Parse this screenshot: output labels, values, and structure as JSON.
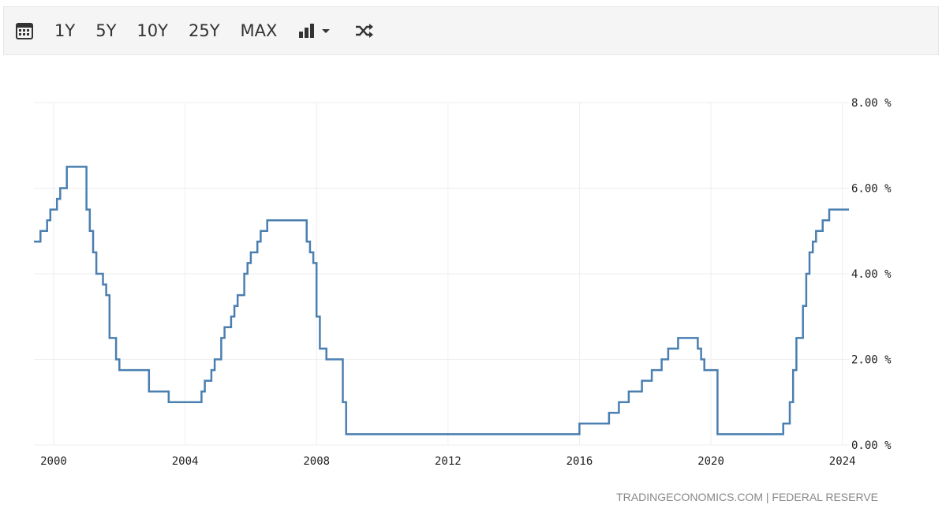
{
  "toolbar": {
    "calendar_icon": "calendar-icon",
    "ranges": [
      "1Y",
      "5Y",
      "10Y",
      "25Y",
      "MAX"
    ],
    "chart_type_icon": "bar-chart-dropdown-icon",
    "shuffle_icon": "shuffle-icon"
  },
  "colors": {
    "line": "#4a7fb0",
    "grid": "#eeeeee",
    "axis_text": "#222222",
    "credit": "#888888"
  },
  "credit": "TRADINGECONOMICS.COM | FEDERAL RESERVE",
  "chart_data": {
    "type": "line",
    "title": "",
    "xlabel": "",
    "ylabel": "",
    "x_unit": "year",
    "xlim": [
      1999.4,
      2024.2
    ],
    "ylim": [
      0,
      8
    ],
    "x_ticks": [
      2000,
      2004,
      2008,
      2012,
      2016,
      2020,
      2024
    ],
    "y_ticks": [
      0,
      2,
      4,
      6,
      8
    ],
    "y_tick_labels": [
      "0.00 %",
      "2.00 %",
      "4.00 %",
      "6.00 %",
      "8.00 %"
    ],
    "y_axis_position": "right",
    "grid": true,
    "step": true,
    "series": [
      {
        "name": "",
        "x": [
          1999.4,
          1999.6,
          1999.8,
          1999.9,
          2000.1,
          2000.2,
          2000.4,
          2000.5,
          2001.0,
          2001.1,
          2001.2,
          2001.3,
          2001.5,
          2001.6,
          2001.7,
          2001.8,
          2001.9,
          2002.0,
          2002.9,
          2003.5,
          2004.5,
          2004.6,
          2004.8,
          2004.9,
          2005.1,
          2005.2,
          2005.4,
          2005.5,
          2005.6,
          2005.8,
          2005.9,
          2006.0,
          2006.2,
          2006.3,
          2006.5,
          2007.7,
          2007.8,
          2007.9,
          2008.0,
          2008.1,
          2008.3,
          2008.8,
          2008.9,
          2016.0,
          2016.9,
          2017.2,
          2017.5,
          2017.9,
          2018.2,
          2018.5,
          2018.7,
          2019.0,
          2019.6,
          2019.7,
          2019.8,
          2020.2,
          2022.2,
          2022.4,
          2022.5,
          2022.6,
          2022.8,
          2022.9,
          2023.0,
          2023.1,
          2023.2,
          2023.4,
          2023.6,
          2024.2
        ],
        "values": [
          4.75,
          5.0,
          5.25,
          5.5,
          5.75,
          6.0,
          6.5,
          6.5,
          5.5,
          5.0,
          4.5,
          4.0,
          3.75,
          3.5,
          2.5,
          2.5,
          2.0,
          1.75,
          1.25,
          1.0,
          1.25,
          1.5,
          1.75,
          2.0,
          2.5,
          2.75,
          3.0,
          3.25,
          3.5,
          4.0,
          4.25,
          4.5,
          4.75,
          5.0,
          5.25,
          4.75,
          4.5,
          4.25,
          3.0,
          2.25,
          2.0,
          1.0,
          0.25,
          0.5,
          0.75,
          1.0,
          1.25,
          1.5,
          1.75,
          2.0,
          2.25,
          2.5,
          2.25,
          2.0,
          1.75,
          0.25,
          0.5,
          1.0,
          1.75,
          2.5,
          3.25,
          4.0,
          4.5,
          4.75,
          5.0,
          5.25,
          5.5,
          5.5
        ]
      }
    ]
  }
}
